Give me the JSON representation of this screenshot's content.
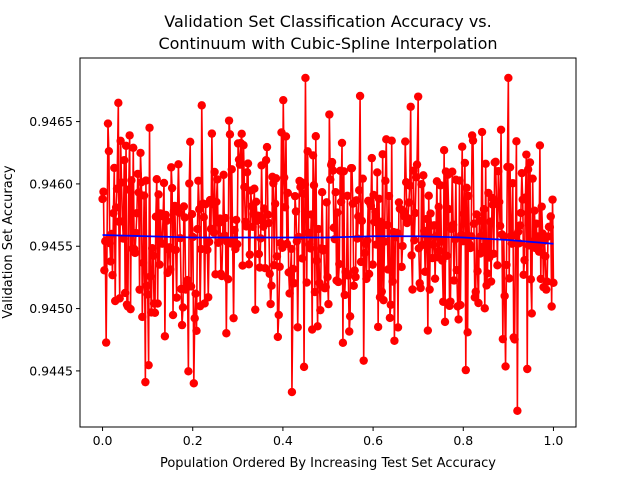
{
  "chart_data": {
    "type": "line",
    "title_line1": "Validation Set Classification Accuracy vs.",
    "title_line2": "Continuum with Cubic-Spline Interpolation",
    "xlabel": "Population Ordered By Increasing Test Set Accuracy",
    "ylabel": "Validation Set Accuracy",
    "xlim": [
      -0.05,
      1.05
    ],
    "ylim": [
      0.94405,
      0.94701
    ],
    "xticks": [
      0.0,
      0.2,
      0.4,
      0.6,
      0.8,
      1.0
    ],
    "xtick_labels": [
      "0.0",
      "0.2",
      "0.4",
      "0.6",
      "0.8",
      "1.0"
    ],
    "yticks": [
      0.9445,
      0.945,
      0.9455,
      0.946,
      0.9465
    ],
    "ytick_labels": [
      "0.9445",
      "0.9450",
      "0.9455",
      "0.9460",
      "0.9465"
    ],
    "grid": false,
    "series": [
      {
        "style": "line-with-markers",
        "color": "#ff0000",
        "point_count": 500,
        "y_center": 0.9456,
        "y_min": 0.94418,
        "y_max": 0.94685,
        "x_range": [
          0.0,
          1.0
        ],
        "notable_points": [
          {
            "x": 0.45,
            "y": 0.94685
          },
          {
            "x": 0.9,
            "y": 0.94685
          },
          {
            "x": 0.7,
            "y": 0.9467
          },
          {
            "x": 0.035,
            "y": 0.94665
          },
          {
            "x": 0.22,
            "y": 0.94663
          },
          {
            "x": 0.42,
            "y": 0.94433
          },
          {
            "x": 0.095,
            "y": 0.94441
          },
          {
            "x": 0.92,
            "y": 0.94418
          }
        ]
      },
      {
        "style": "line",
        "color": "#0000ff",
        "x": [
          0.0,
          0.1,
          0.2,
          0.3,
          0.4,
          0.5,
          0.6,
          0.7,
          0.8,
          0.9,
          1.0
        ],
        "values": [
          0.94559,
          0.94558,
          0.94557,
          0.94557,
          0.94557,
          0.94557,
          0.94558,
          0.94558,
          0.94557,
          0.94555,
          0.94552
        ]
      }
    ]
  }
}
